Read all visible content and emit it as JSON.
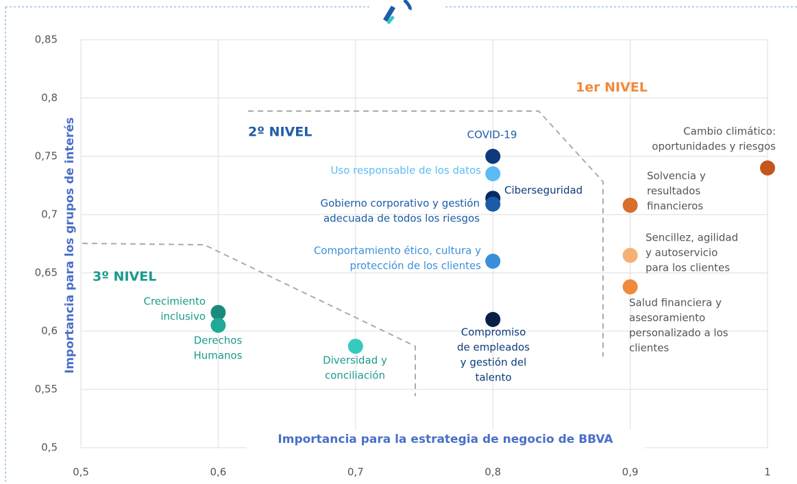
{
  "chart_data": {
    "type": "scatter",
    "x_label": "Importancia para la estrategia de negocio de BBVA",
    "y_label": "Importancia para los grupos de interés",
    "annotations": [
      "1er NIVEL",
      "2º NIVEL",
      "3º NIVEL"
    ],
    "xlim": [
      0.5,
      1.0
    ],
    "ylim": [
      0.5,
      0.85
    ],
    "xticks": [
      {
        "value": 0.5,
        "label": "0,5"
      },
      {
        "value": 0.6,
        "label": "0,6"
      },
      {
        "value": 0.7,
        "label": "0,7"
      },
      {
        "value": 0.8,
        "label": "0,8"
      },
      {
        "value": 0.9,
        "label": "0,9"
      },
      1
    ],
    "yticks": [
      {
        "value": 0.5,
        "label": "0,5"
      },
      {
        "value": 0.55,
        "label": "0,55"
      },
      {
        "value": 0.6,
        "label": "0,6"
      },
      {
        "value": 0.65,
        "label": "0,65"
      },
      {
        "value": 0.7,
        "label": "0,7"
      },
      {
        "value": 0.75,
        "label": "0,75"
      },
      {
        "value": 0.8,
        "label": "0,8"
      },
      {
        "value": 0.85,
        "label": "0,85"
      }
    ],
    "grid": true,
    "points": [
      {
        "label": [
          "COVID-19"
        ],
        "x": 0.8,
        "y": 0.75,
        "color": "#0d3a7a"
      },
      {
        "label": [
          "Uso responsable de los datos"
        ],
        "x": 0.8,
        "y": 0.735,
        "color": "#5bbcf5"
      },
      {
        "label": [
          "Ciberseguridad"
        ],
        "x": 0.8,
        "y": 0.714,
        "color": "#0a2a5e"
      },
      {
        "label": [
          "Gobierno corporativo y gestión",
          "adecuada de todos los riesgos"
        ],
        "x": 0.8,
        "y": 0.709,
        "color": "#1a5ca8"
      },
      {
        "label": [
          "Comportamiento ético, cultura y",
          "protección de los clientes"
        ],
        "x": 0.8,
        "y": 0.66,
        "color": "#3a8fd9"
      },
      {
        "label": [
          "Compromiso",
          "de empleados",
          "y gestión del",
          "talento"
        ],
        "x": 0.8,
        "y": 0.61,
        "color": "#0a1f45"
      },
      {
        "label": [
          "Cambio climático:",
          "oportunidades y riesgos"
        ],
        "x": 1.0,
        "y": 0.74,
        "color": "#c4561a"
      },
      {
        "label": [
          "Solvencia y",
          "resultados",
          "financieros"
        ],
        "x": 0.9,
        "y": 0.708,
        "color": "#d86e2a"
      },
      {
        "label": [
          "Sencillez, agilidad",
          "y autoservicio",
          "para los clientes"
        ],
        "x": 0.9,
        "y": 0.665,
        "color": "#f5b078"
      },
      {
        "label": [
          "Salud financiera y",
          "asesoramiento",
          "personalizado a los",
          "clientes"
        ],
        "x": 0.9,
        "y": 0.638,
        "color": "#f08a3a"
      },
      {
        "label": [
          "Crecimiento",
          "inclusivo"
        ],
        "x": 0.6,
        "y": 0.616,
        "color": "#1a8a7e"
      },
      {
        "label": [
          "Derechos",
          "Humanos"
        ],
        "x": 0.6,
        "y": 0.605,
        "color": "#20a898"
      },
      {
        "label": [
          "Diversidad y",
          "conciliación"
        ],
        "x": 0.7,
        "y": 0.587,
        "color": "#35c9c0"
      }
    ]
  }
}
